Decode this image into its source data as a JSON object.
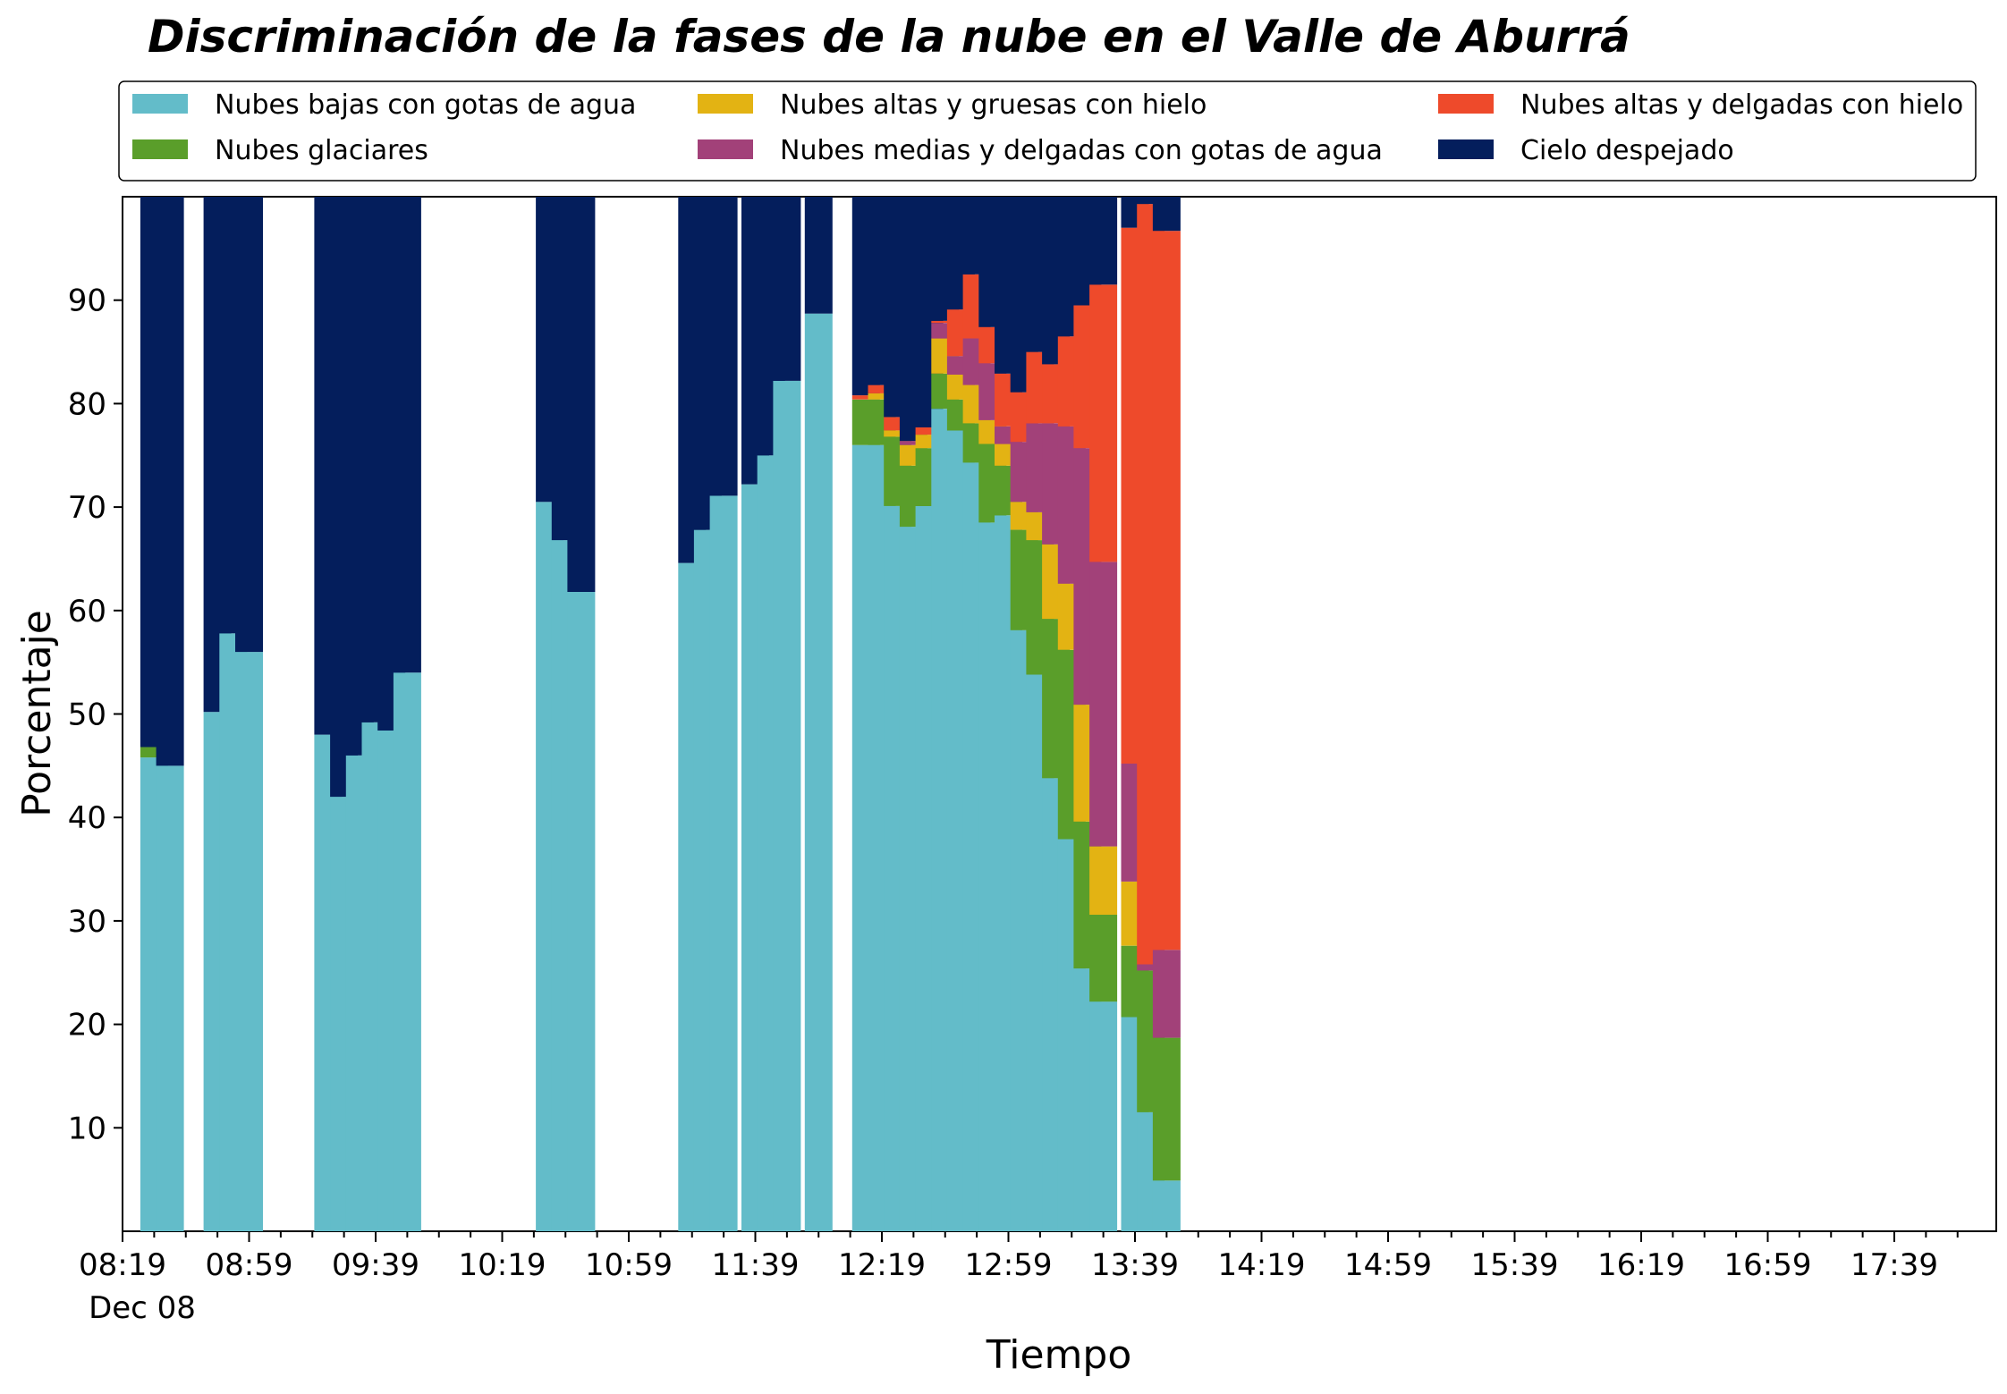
{
  "chart_data": {
    "type": "bar",
    "stacked": true,
    "title": "Discriminación de la fases de la nube en el Valle de Aburrá",
    "xlabel": "Tiempo",
    "ylabel": "Porcentaje",
    "ylim": [
      0,
      100
    ],
    "yticks": [
      10,
      20,
      30,
      40,
      50,
      60,
      70,
      80,
      90
    ],
    "xticks": [
      "08:19",
      "08:59",
      "09:39",
      "10:19",
      "10:59",
      "11:39",
      "12:19",
      "12:59",
      "13:39",
      "14:19",
      "14:59",
      "15:39",
      "16:19",
      "16:59",
      "17:39"
    ],
    "xtick_sublabel": "Dec 08",
    "legend_position": "top",
    "series": [
      {
        "name": "Nubes bajas con gotas de agua",
        "color": "#63bcc9"
      },
      {
        "name": "Nubes glaciares",
        "color": "#5a9e2a"
      },
      {
        "name": "Nubes altas y gruesas con hielo",
        "color": "#e3b313"
      },
      {
        "name": "Nubes medias y delgadas con gotas de agua",
        "color": "#a24179"
      },
      {
        "name": "Nubes altas y delgadas con hielo",
        "color": "#ee4a2b"
      },
      {
        "name": "Cielo despejado",
        "color": "#041e5c"
      }
    ],
    "bars": [
      {
        "time": "08:29",
        "values": [
          45.8,
          1.0,
          0,
          0,
          0,
          53.2
        ]
      },
      {
        "time": "08:34",
        "values": [
          45.0,
          0,
          0,
          0,
          0,
          55.0
        ]
      },
      {
        "time": "08:49",
        "values": [
          50.2,
          0,
          0,
          0,
          0,
          49.8
        ]
      },
      {
        "time": "08:54",
        "values": [
          57.8,
          0,
          0,
          0,
          0,
          42.2
        ]
      },
      {
        "time": "08:59",
        "values": [
          56.0,
          0,
          0,
          0,
          0,
          44.0
        ]
      },
      {
        "time": "09:24",
        "values": [
          48.0,
          0,
          0,
          0,
          0,
          52.0
        ]
      },
      {
        "time": "09:29",
        "values": [
          42.0,
          0,
          0,
          0,
          0,
          58.0
        ]
      },
      {
        "time": "09:34",
        "values": [
          46.0,
          0,
          0,
          0,
          0,
          54.0
        ]
      },
      {
        "time": "09:39",
        "values": [
          49.2,
          0,
          0,
          0,
          0,
          50.8
        ]
      },
      {
        "time": "09:44",
        "values": [
          48.4,
          0,
          0,
          0,
          0,
          51.6
        ]
      },
      {
        "time": "09:49",
        "values": [
          54.0,
          0,
          0,
          0,
          0,
          46.0
        ]
      },
      {
        "time": "10:34",
        "values": [
          70.5,
          0,
          0,
          0,
          0,
          29.5
        ]
      },
      {
        "time": "10:39",
        "values": [
          66.8,
          0,
          0,
          0,
          0,
          33.2
        ]
      },
      {
        "time": "10:44",
        "values": [
          61.8,
          0,
          0,
          0,
          0,
          38.2
        ]
      },
      {
        "time": "11:19",
        "values": [
          64.6,
          0,
          0,
          0,
          0,
          35.4
        ]
      },
      {
        "time": "11:24",
        "values": [
          67.8,
          0,
          0,
          0,
          0,
          32.2
        ]
      },
      {
        "time": "11:29",
        "values": [
          71.1,
          0,
          0,
          0,
          0,
          28.9
        ]
      },
      {
        "time": "11:39",
        "values": [
          72.2,
          0,
          0,
          0,
          0,
          27.8
        ]
      },
      {
        "time": "11:44",
        "values": [
          75.0,
          0,
          0,
          0,
          0,
          25.0
        ]
      },
      {
        "time": "11:49",
        "values": [
          82.2,
          0,
          0,
          0,
          0,
          17.8
        ]
      },
      {
        "time": "11:59",
        "values": [
          88.7,
          0,
          0,
          0,
          0,
          11.3
        ]
      },
      {
        "time": "12:14",
        "values": [
          76.0,
          4.4,
          0,
          0,
          0.4,
          19.2
        ]
      },
      {
        "time": "12:19",
        "values": [
          76.0,
          4.4,
          0.6,
          0,
          0.8,
          18.2
        ]
      },
      {
        "time": "12:24",
        "values": [
          70.1,
          6.7,
          0.6,
          0,
          1.3,
          21.3
        ]
      },
      {
        "time": "12:29",
        "values": [
          68.1,
          5.9,
          2.0,
          0.4,
          0,
          23.6
        ]
      },
      {
        "time": "12:34",
        "values": [
          70.1,
          5.6,
          1.3,
          0,
          0.7,
          22.3
        ]
      },
      {
        "time": "12:39",
        "values": [
          79.5,
          3.4,
          3.4,
          1.5,
          0.2,
          12.0
        ]
      },
      {
        "time": "12:44",
        "values": [
          77.4,
          3.0,
          2.4,
          1.8,
          4.5,
          10.9
        ]
      },
      {
        "time": "12:49",
        "values": [
          74.3,
          3.8,
          3.7,
          4.5,
          6.2,
          7.5
        ]
      },
      {
        "time": "12:54",
        "values": [
          68.5,
          7.6,
          2.3,
          5.5,
          3.5,
          12.6
        ]
      },
      {
        "time": "12:59",
        "values": [
          69.2,
          4.8,
          2.1,
          1.7,
          5.1,
          17.1
        ]
      },
      {
        "time": "13:04",
        "values": [
          58.1,
          9.7,
          2.7,
          5.8,
          4.8,
          18.9
        ]
      },
      {
        "time": "13:09",
        "values": [
          53.8,
          13.0,
          2.7,
          8.6,
          6.9,
          15.0
        ]
      },
      {
        "time": "13:14",
        "values": [
          43.8,
          15.4,
          7.2,
          11.7,
          5.7,
          16.2
        ]
      },
      {
        "time": "13:19",
        "values": [
          37.9,
          18.3,
          6.4,
          15.2,
          8.7,
          13.5
        ]
      },
      {
        "time": "13:24",
        "values": [
          25.4,
          14.2,
          11.3,
          24.8,
          13.8,
          10.5
        ]
      },
      {
        "time": "13:29",
        "values": [
          22.2,
          8.4,
          6.6,
          27.5,
          26.8,
          8.5
        ]
      },
      {
        "time": "13:39",
        "values": [
          20.7,
          6.9,
          6.2,
          11.4,
          51.8,
          3.0
        ]
      },
      {
        "time": "13:44",
        "values": [
          11.5,
          13.7,
          0,
          0.6,
          73.5,
          0.7
        ]
      },
      {
        "time": "13:49",
        "values": [
          4.9,
          13.8,
          0,
          8.5,
          69.5,
          3.3
        ]
      }
    ]
  }
}
